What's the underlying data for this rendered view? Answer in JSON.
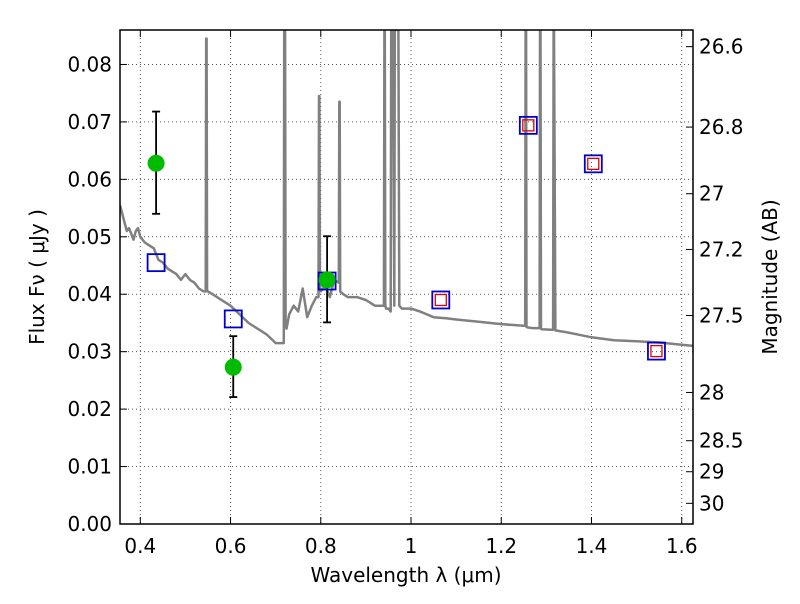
{
  "chart_data": {
    "type": "scatter",
    "xlabel": "Wavelength  λ (μm)",
    "ylabel": "Flux  Fν  ( μJy )",
    "y2label": "Magnitude (AB)",
    "xlim": [
      0.355,
      1.625
    ],
    "ylim": [
      0.0,
      0.086
    ],
    "grid": true,
    "x_ticks": [
      0.4,
      0.6,
      0.8,
      1.0,
      1.2,
      1.4,
      1.6
    ],
    "x_tick_labels": [
      "0.4",
      "0.6",
      "0.8",
      "1",
      "1.2",
      "1.4",
      "1.6"
    ],
    "y_ticks": [
      0.0,
      0.01,
      0.02,
      0.03,
      0.04,
      0.05,
      0.06,
      0.07,
      0.08
    ],
    "y_tick_labels": [
      "0.00",
      "0.01",
      "0.02",
      "0.03",
      "0.04",
      "0.05",
      "0.06",
      "0.07",
      "0.08"
    ],
    "y2_ticks": [
      {
        "flux": 0.0831,
        "label": "26.6"
      },
      {
        "flux": 0.0691,
        "label": "26.8"
      },
      {
        "flux": 0.0575,
        "label": "27"
      },
      {
        "flux": 0.0478,
        "label": "27.2"
      },
      {
        "flux": 0.0363,
        "label": "27.5"
      },
      {
        "flux": 0.0229,
        "label": "28"
      },
      {
        "flux": 0.0145,
        "label": "28.5"
      },
      {
        "flux": 0.0091,
        "label": "29"
      },
      {
        "flux": 0.0036,
        "label": "30"
      }
    ],
    "colors": {
      "sed_line": "#808080",
      "observed": "#00bb00",
      "model_box": "#0000cc",
      "upper_box": "#dd0000",
      "errorbar": "#000000",
      "grid": "#555555"
    },
    "sed_curve": {
      "x": [
        0.355,
        0.36,
        0.365,
        0.37,
        0.375,
        0.38,
        0.385,
        0.39,
        0.395,
        0.4,
        0.41,
        0.42,
        0.43,
        0.44,
        0.45,
        0.46,
        0.47,
        0.48,
        0.49,
        0.5,
        0.51,
        0.52,
        0.53,
        0.54,
        0.545,
        0.546,
        0.547,
        0.548,
        0.55,
        0.56,
        0.58,
        0.6,
        0.62,
        0.64,
        0.66,
        0.68,
        0.7,
        0.71,
        0.718,
        0.719,
        0.72,
        0.721,
        0.722,
        0.724,
        0.73,
        0.74,
        0.75,
        0.76,
        0.77,
        0.78,
        0.79,
        0.795,
        0.796,
        0.797,
        0.798,
        0.8,
        0.81,
        0.82,
        0.83,
        0.84,
        0.841,
        0.842,
        0.843,
        0.85,
        0.86,
        0.88,
        0.9,
        0.92,
        0.94,
        0.941,
        0.942,
        0.943,
        0.945,
        0.95,
        0.955,
        0.956,
        0.957,
        0.96,
        0.963,
        0.964,
        0.965,
        0.968,
        0.97,
        0.971,
        0.972,
        0.974,
        0.98,
        1.0,
        1.02,
        1.05,
        1.08,
        1.1,
        1.15,
        1.2,
        1.25,
        1.253,
        1.254,
        1.255,
        1.256,
        1.26,
        1.27,
        1.28,
        1.285,
        1.286,
        1.287,
        1.288,
        1.29,
        1.31,
        1.315,
        1.316,
        1.317,
        1.32,
        1.35,
        1.4,
        1.45,
        1.5,
        1.55,
        1.6,
        1.625
      ],
      "y": [
        0.0555,
        0.054,
        0.0525,
        0.051,
        0.0515,
        0.0505,
        0.0495,
        0.051,
        0.0515,
        0.05,
        0.049,
        0.0485,
        0.048,
        0.046,
        0.0455,
        0.0445,
        0.044,
        0.0435,
        0.0425,
        0.0435,
        0.0425,
        0.042,
        0.041,
        0.0405,
        0.0405,
        0.0845,
        0.0845,
        0.0405,
        0.0405,
        0.04,
        0.039,
        0.038,
        0.0365,
        0.035,
        0.034,
        0.033,
        0.0315,
        0.0315,
        0.0315,
        0.086,
        0.086,
        0.086,
        0.035,
        0.034,
        0.0365,
        0.038,
        0.037,
        0.041,
        0.036,
        0.038,
        0.0395,
        0.0395,
        0.0745,
        0.0745,
        0.0415,
        0.0405,
        0.0415,
        0.0395,
        0.0425,
        0.042,
        0.0735,
        0.0735,
        0.0405,
        0.04,
        0.0395,
        0.0395,
        0.039,
        0.038,
        0.038,
        0.086,
        0.086,
        0.038,
        0.0375,
        0.0375,
        0.037,
        0.086,
        0.086,
        0.086,
        0.038,
        0.086,
        0.086,
        0.086,
        0.086,
        0.086,
        0.086,
        0.038,
        0.0375,
        0.0375,
        0.037,
        0.036,
        0.0358,
        0.0356,
        0.0352,
        0.0348,
        0.0345,
        0.0345,
        0.086,
        0.086,
        0.0343,
        0.0342,
        0.0341,
        0.0341,
        0.0341,
        0.086,
        0.086,
        0.034,
        0.0339,
        0.0338,
        0.0338,
        0.086,
        0.086,
        0.0337,
        0.0333,
        0.0325,
        0.032,
        0.0318,
        0.0316,
        0.0312,
        0.031
      ]
    },
    "observed": [
      {
        "x": 0.435,
        "y": 0.0628,
        "yerr_low": 0.054,
        "yerr_high": 0.0718
      },
      {
        "x": 0.606,
        "y": 0.0273,
        "yerr_low": 0.0221,
        "yerr_high": 0.0327
      },
      {
        "x": 0.814,
        "y": 0.0425,
        "yerr_low": 0.0351,
        "yerr_high": 0.0501
      }
    ],
    "model_boxes": [
      {
        "x": 0.435,
        "y": 0.0455
      },
      {
        "x": 0.606,
        "y": 0.0357
      },
      {
        "x": 0.814,
        "y": 0.0423
      },
      {
        "x": 1.066,
        "y": 0.039
      },
      {
        "x": 1.26,
        "y": 0.0694
      },
      {
        "x": 1.404,
        "y": 0.0627
      },
      {
        "x": 1.544,
        "y": 0.0301
      }
    ],
    "upper_boxes": [
      {
        "x": 1.066,
        "y": 0.039
      },
      {
        "x": 1.26,
        "y": 0.0694
      },
      {
        "x": 1.404,
        "y": 0.0627
      },
      {
        "x": 1.544,
        "y": 0.0301
      }
    ]
  }
}
